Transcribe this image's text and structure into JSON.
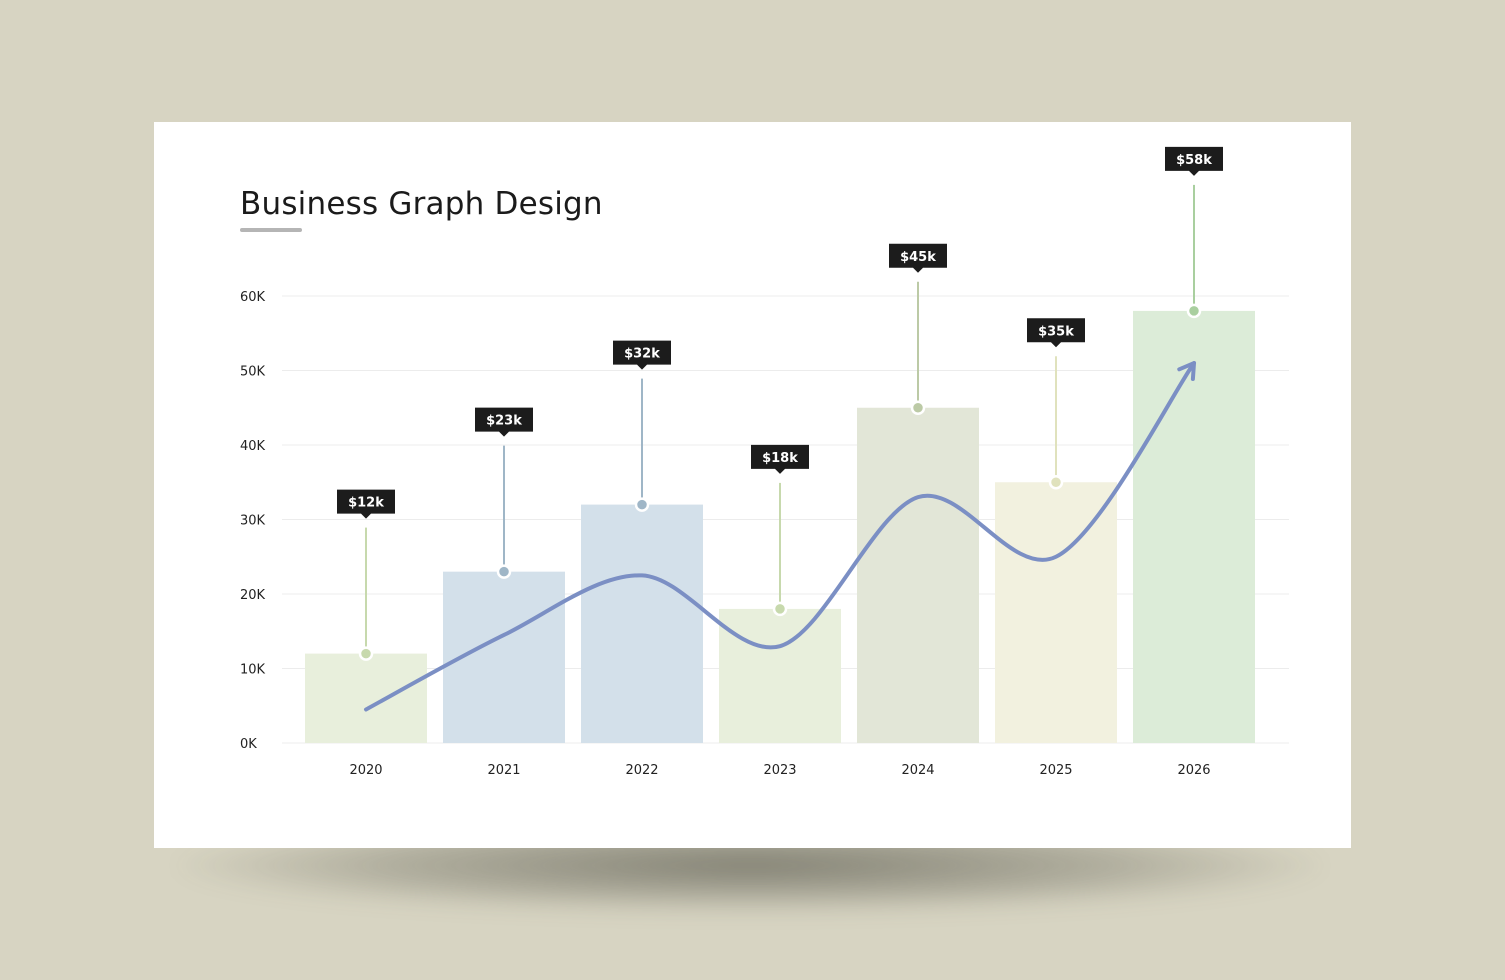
{
  "title": "Business Graph Design",
  "chart_data": {
    "type": "bar",
    "title": "Business Graph Design",
    "categories": [
      "2020",
      "2021",
      "2022",
      "2023",
      "2024",
      "2025",
      "2026"
    ],
    "values": [
      12,
      23,
      32,
      18,
      45,
      35,
      58
    ],
    "data_labels": [
      "$12k",
      "$23k",
      "$32k",
      "$18k",
      "$45k",
      "$35k",
      "$58k"
    ],
    "unit": "K",
    "ylim": [
      0,
      60
    ],
    "yticks": [
      0,
      10,
      20,
      30,
      40,
      50,
      60
    ],
    "ytick_labels": [
      "0K",
      "10K",
      "20K",
      "30K",
      "40K",
      "50K",
      "60K"
    ],
    "xlabel": "",
    "ylabel": "",
    "grid": true,
    "legend": "none",
    "bar_colors": [
      "#e8efdc",
      "#d3e0ea",
      "#d3e0ea",
      "#e8efdc",
      "#e2e6d7",
      "#f2f1df",
      "#dcecd8"
    ],
    "marker_colors": [
      "#c7d9ad",
      "#9fb6c7",
      "#9fb6c7",
      "#c7d9ad",
      "#bccaa6",
      "#e0e2bd",
      "#a9cf9f"
    ],
    "trend_line": {
      "color": "#7b8fc4",
      "x": [
        "2020",
        "2021",
        "2022",
        "2023",
        "2024",
        "2025",
        "2026"
      ],
      "values": [
        4.5,
        14.5,
        22.5,
        13,
        33,
        25,
        51
      ],
      "arrow_end": true
    },
    "tooltip_color": "#1c1c1c"
  }
}
